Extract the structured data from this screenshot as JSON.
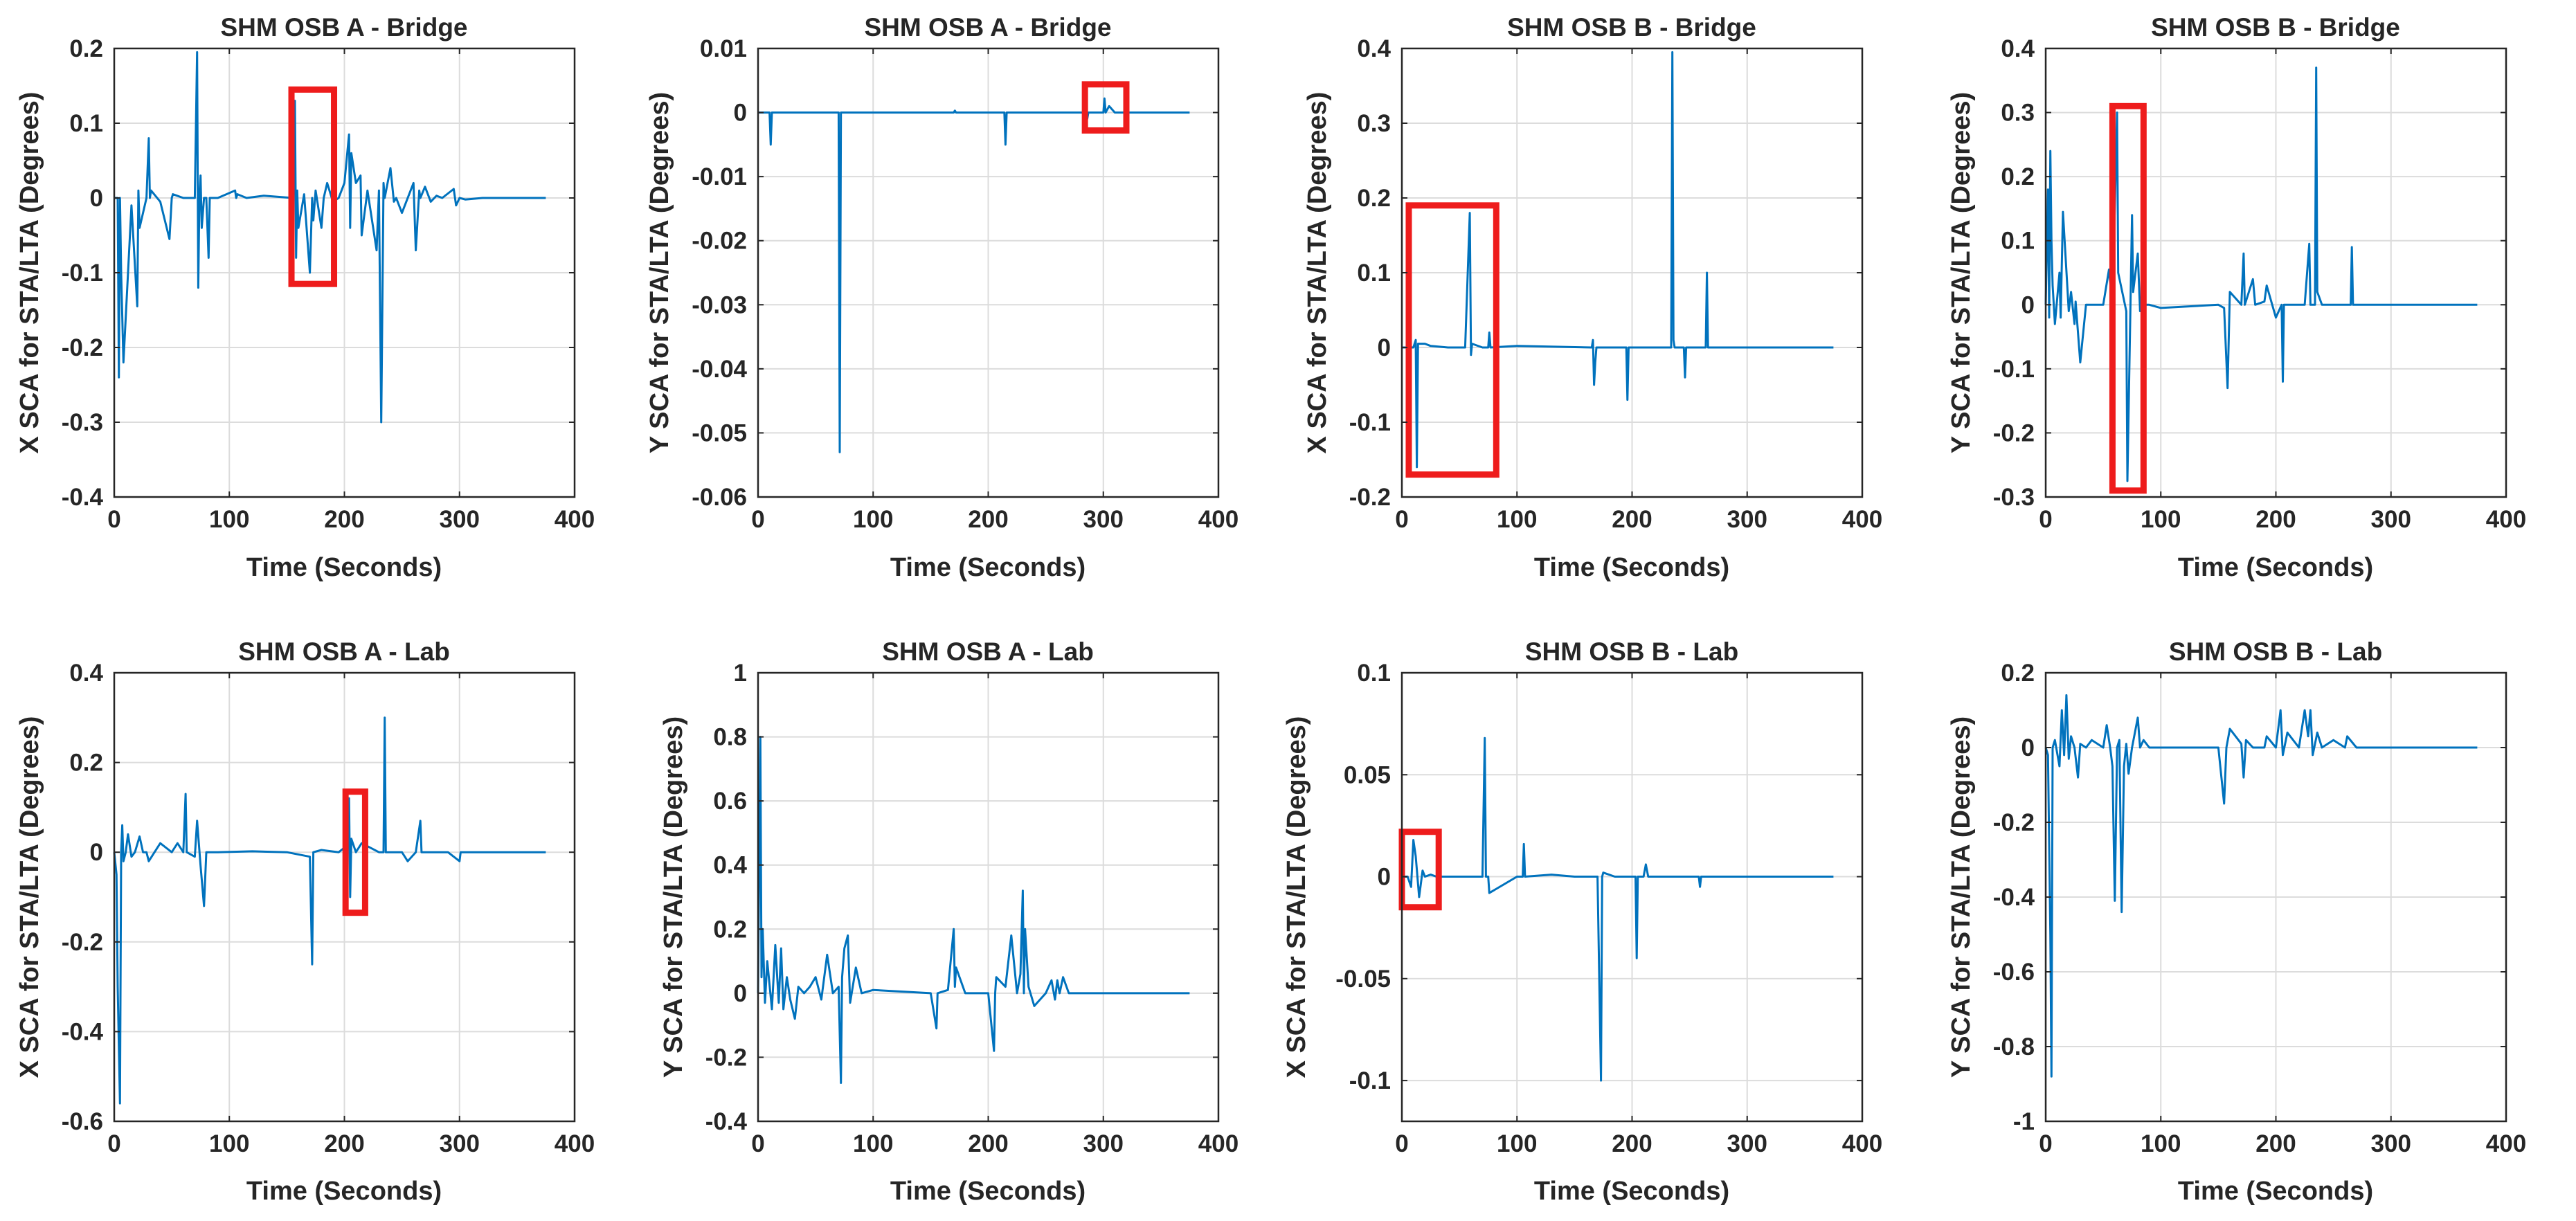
{
  "figure": {
    "series_color": "#0072BD",
    "highlight_color": "#ee1c1c",
    "grid_color": "#dcdcdc"
  },
  "chart_data": [
    {
      "id": "p1",
      "type": "line",
      "title": "SHM OSB A - Bridge",
      "xlabel": "Time (Seconds)",
      "ylabel": "X SCA for STA/LTA (Degrees)",
      "xlim": [
        0,
        400
      ],
      "ylim": [
        -0.4,
        0.2
      ],
      "xticks": [
        0,
        100,
        200,
        300,
        400
      ],
      "xticklabels": [
        "0",
        "100",
        "200",
        "300",
        "400"
      ],
      "yticks": [
        -0.4,
        -0.3,
        -0.2,
        -0.1,
        0,
        0.1,
        0.2
      ],
      "yticklabels": [
        "-0.4",
        "-0.3",
        "-0.2",
        "-0.1",
        "0",
        "0.1",
        "0.2"
      ],
      "grid": true,
      "x": [
        0,
        3,
        4,
        5,
        6,
        8,
        15,
        20,
        21,
        22,
        28,
        30,
        31,
        32,
        40,
        48,
        50,
        51,
        60,
        70,
        72,
        73,
        74,
        75,
        76,
        78,
        80,
        82,
        83,
        90,
        105,
        106,
        107,
        115,
        130,
        155,
        157,
        158,
        159,
        160,
        165,
        170,
        172,
        173,
        175,
        180,
        182,
        185,
        190,
        195,
        200,
        204,
        205,
        206,
        210,
        214,
        215,
        220,
        228,
        230,
        232,
        234,
        235,
        240,
        243,
        245,
        250,
        260,
        262,
        265,
        266,
        270,
        275,
        280,
        285,
        295,
        297,
        300,
        305,
        320,
        375
      ],
      "y": [
        0,
        0,
        -0.24,
        0,
        -0.1,
        -0.22,
        -0.01,
        -0.145,
        0.01,
        -0.04,
        0,
        0.08,
        0,
        0.01,
        -0.005,
        -0.055,
        0,
        0.005,
        0,
        0,
        0.195,
        -0.12,
        0,
        0.03,
        -0.04,
        0,
        0,
        -0.08,
        0,
        0,
        0.01,
        0,
        0.005,
        0,
        0.003,
        0,
        0.13,
        -0.08,
        0.01,
        -0.04,
        0.005,
        -0.1,
        0,
        -0.03,
        0.01,
        -0.04,
        0,
        0.02,
        -0.005,
        0,
        0.02,
        0.085,
        -0.04,
        0.06,
        0.02,
        0.03,
        -0.05,
        0.01,
        -0.07,
        0.01,
        -0.3,
        0.02,
        0,
        0.04,
        -0.005,
        0,
        -0.02,
        0.02,
        -0.07,
        0.01,
        0,
        0.015,
        -0.005,
        0.003,
        0,
        0.012,
        -0.01,
        0,
        -0.002,
        0,
        0
      ],
      "highlights": [
        {
          "x": [
            154,
            191
          ],
          "y": [
            -0.115,
            0.145
          ]
        }
      ]
    },
    {
      "id": "p2",
      "type": "line",
      "title": "SHM OSB A - Bridge",
      "xlabel": "Time (Seconds)",
      "ylabel": "Y SCA for STA/LTA (Degrees)",
      "xlim": [
        0,
        400
      ],
      "ylim": [
        -0.06,
        0.01
      ],
      "xticks": [
        0,
        100,
        200,
        300,
        400
      ],
      "xticklabels": [
        "0",
        "100",
        "200",
        "300",
        "400"
      ],
      "yticks": [
        -0.06,
        -0.05,
        -0.04,
        -0.03,
        -0.02,
        -0.01,
        0,
        0.01
      ],
      "yticklabels": [
        "-0.06",
        "-0.05",
        "-0.04",
        "-0.03",
        "-0.02",
        "-0.01",
        "0",
        "0.01"
      ],
      "grid": true,
      "x": [
        0,
        10,
        11,
        12,
        70,
        71,
        72,
        73,
        150,
        170,
        171,
        172,
        214,
        215,
        216,
        285,
        286,
        287,
        300,
        301,
        302,
        305,
        310,
        375
      ],
      "y": [
        0,
        0,
        -0.005,
        0,
        0,
        -0.053,
        0,
        0,
        0,
        0,
        0.0003,
        0,
        0,
        -0.005,
        0,
        0,
        -0.001,
        0,
        0,
        0.0022,
        0,
        0.001,
        0,
        0
      ],
      "highlights": [
        {
          "x": [
            284,
            320
          ],
          "y": [
            -0.0028,
            0.0044
          ]
        }
      ]
    },
    {
      "id": "p3",
      "type": "line",
      "title": "SHM OSB B - Bridge",
      "xlabel": "Time (Seconds)",
      "ylabel": "X SCA for STA/LTA (Degrees)",
      "xlim": [
        0,
        400
      ],
      "ylim": [
        -0.2,
        0.4
      ],
      "xticks": [
        0,
        100,
        200,
        300,
        400
      ],
      "xticklabels": [
        "0",
        "100",
        "200",
        "300",
        "400"
      ],
      "yticks": [
        -0.2,
        -0.1,
        0,
        0.1,
        0.2,
        0.3,
        0.4
      ],
      "yticklabels": [
        "-0.2",
        "-0.1",
        "0",
        "0.1",
        "0.2",
        "0.3",
        "0.4"
      ],
      "grid": true,
      "x": [
        0,
        10,
        12,
        13,
        14,
        20,
        25,
        40,
        55,
        59,
        60,
        61,
        70,
        75,
        76,
        77,
        100,
        165,
        166,
        167,
        168,
        169,
        175,
        195,
        196,
        197,
        205,
        210,
        234,
        235,
        236,
        237,
        240,
        245,
        246,
        247,
        250,
        264,
        265,
        266,
        280,
        375
      ],
      "y": [
        0,
        0,
        0.01,
        -0.16,
        0.005,
        0.005,
        0.002,
        0,
        0,
        0.18,
        -0.01,
        0.005,
        0,
        0,
        0.02,
        0,
        0.002,
        0,
        0.01,
        -0.05,
        -0.02,
        0,
        0,
        0,
        -0.07,
        0,
        0,
        0,
        0,
        0.395,
        0.01,
        0,
        0,
        0,
        -0.04,
        0,
        0,
        0,
        0.1,
        0,
        0,
        0
      ],
      "highlights": [
        {
          "x": [
            6,
            82
          ],
          "y": [
            -0.17,
            0.19
          ]
        }
      ]
    },
    {
      "id": "p4",
      "type": "line",
      "title": "SHM OSB B - Bridge",
      "xlabel": "Time (Seconds)",
      "ylabel": "Y SCA for STA/LTA (Degrees)",
      "xlim": [
        0,
        400
      ],
      "ylim": [
        -0.3,
        0.4
      ],
      "xticks": [
        0,
        100,
        200,
        300,
        400
      ],
      "xticklabels": [
        "0",
        "100",
        "200",
        "300",
        "400"
      ],
      "yticks": [
        -0.3,
        -0.2,
        -0.1,
        0,
        0.1,
        0.2,
        0.3,
        0.4
      ],
      "yticklabels": [
        "-0.3",
        "-0.2",
        "-0.1",
        "0",
        "0.1",
        "0.2",
        "0.3",
        "0.4"
      ],
      "grid": true,
      "x": [
        0,
        2,
        3,
        4,
        5,
        6,
        8,
        12,
        13,
        15,
        20,
        22,
        25,
        26,
        30,
        35,
        40,
        50,
        55,
        58,
        62,
        63,
        70,
        71,
        75,
        76,
        80,
        82,
        85,
        90,
        100,
        150,
        155,
        158,
        160,
        170,
        172,
        173,
        180,
        182,
        190,
        192,
        200,
        205,
        206,
        207,
        210,
        225,
        229,
        230,
        234,
        235,
        236,
        240,
        265,
        266,
        267,
        270,
        300,
        375
      ],
      "y": [
        0,
        0.18,
        -0.02,
        0.24,
        0.1,
        0.03,
        -0.03,
        0.05,
        -0.02,
        0.145,
        -0.01,
        0.02,
        -0.03,
        0.005,
        -0.09,
        0,
        0,
        0,
        0.055,
        0,
        0.3,
        0.05,
        -0.01,
        -0.275,
        0.14,
        0.02,
        0.08,
        -0.01,
        0,
        0,
        -0.005,
        0,
        -0.005,
        -0.13,
        0.02,
        0,
        0.08,
        0,
        0.04,
        0,
        0.005,
        0.03,
        -0.02,
        0,
        -0.12,
        0,
        0,
        0,
        0.095,
        0,
        0,
        0.37,
        0.02,
        0,
        0,
        0.09,
        0,
        0,
        0,
        0
      ],
      "highlights": [
        {
          "x": [
            58,
            85
          ],
          "y": [
            -0.29,
            0.31
          ]
        }
      ]
    },
    {
      "id": "p5",
      "type": "line",
      "title": "SHM OSB A - Lab",
      "xlabel": "Time (Seconds)",
      "ylabel": "X SCA for STA/LTA (Degrees)",
      "xlim": [
        0,
        400
      ],
      "ylim": [
        -0.6,
        0.4
      ],
      "xticks": [
        0,
        100,
        200,
        300,
        400
      ],
      "xticklabels": [
        "0",
        "100",
        "200",
        "300",
        "400"
      ],
      "yticks": [
        -0.6,
        -0.4,
        -0.2,
        0,
        0.2,
        0.4
      ],
      "yticklabels": [
        "-0.6",
        "-0.4",
        "-0.2",
        "0",
        "0.2",
        "0.4"
      ],
      "grid": true,
      "x": [
        0,
        2,
        3,
        5,
        6,
        7,
        8,
        10,
        12,
        15,
        18,
        22,
        25,
        28,
        30,
        40,
        50,
        55,
        60,
        62,
        63,
        70,
        72,
        75,
        78,
        80,
        90,
        120,
        150,
        170,
        172,
        173,
        180,
        195,
        200,
        204,
        205,
        206,
        210,
        215,
        230,
        234,
        235,
        236,
        240,
        250,
        255,
        262,
        266,
        267,
        270,
        290,
        300,
        301,
        302,
        375
      ],
      "y": [
        0,
        -0.05,
        -0.3,
        -0.56,
        0,
        0.06,
        -0.02,
        0,
        0.04,
        -0.01,
        0,
        0.035,
        0,
        0,
        -0.02,
        0.02,
        0,
        0.02,
        0,
        0.13,
        0,
        -0.01,
        0.07,
        -0.03,
        -0.12,
        0,
        0,
        0.002,
        0,
        -0.01,
        -0.25,
        0,
        0.005,
        0,
        0.01,
        0.12,
        -0.1,
        0.03,
        0,
        0.02,
        0,
        0,
        0.3,
        0,
        0,
        0,
        -0.02,
        0,
        0.07,
        0,
        0,
        0,
        -0.02,
        0,
        0,
        0
      ],
      "highlights": [
        {
          "x": [
            201,
            218
          ],
          "y": [
            -0.135,
            0.135
          ]
        }
      ]
    },
    {
      "id": "p6",
      "type": "line",
      "title": "SHM OSB A - Lab",
      "xlabel": "Time (Seconds)",
      "ylabel": "Y SCA for STA/LTA (Degrees)",
      "xlim": [
        0,
        400
      ],
      "ylim": [
        -0.4,
        1
      ],
      "xticks": [
        0,
        100,
        200,
        300,
        400
      ],
      "xticklabels": [
        "0",
        "100",
        "200",
        "300",
        "400"
      ],
      "yticks": [
        -0.4,
        -0.2,
        0,
        0.2,
        0.4,
        0.6,
        0.8,
        1
      ],
      "yticklabels": [
        "-0.4",
        "-0.2",
        "0",
        "0.2",
        "0.4",
        "0.6",
        "0.8",
        "1"
      ],
      "grid": true,
      "x": [
        0,
        2,
        3,
        4,
        6,
        8,
        12,
        15,
        18,
        20,
        22,
        25,
        28,
        32,
        35,
        40,
        45,
        50,
        55,
        60,
        65,
        70,
        72,
        73,
        75,
        78,
        80,
        85,
        90,
        100,
        150,
        155,
        156,
        165,
        170,
        171,
        172,
        180,
        200,
        205,
        206,
        207,
        215,
        220,
        225,
        228,
        230,
        231,
        232,
        235,
        240,
        250,
        255,
        258,
        260,
        262,
        265,
        270,
        300,
        375
      ],
      "y": [
        0,
        0.8,
        0.05,
        0.2,
        -0.03,
        0.1,
        -0.05,
        0.15,
        -0.03,
        0.14,
        -0.05,
        0.05,
        -0.02,
        -0.08,
        0.02,
        0,
        0.02,
        0.05,
        -0.02,
        0.12,
        0,
        0.02,
        -0.28,
        0.05,
        0.14,
        0.18,
        -0.03,
        0.08,
        0,
        0.01,
        0,
        -0.11,
        0,
        0.01,
        0.2,
        0.02,
        0.08,
        0,
        0,
        -0.18,
        0,
        0.05,
        0.02,
        0.18,
        0,
        0.06,
        0.32,
        0,
        0.2,
        0.02,
        -0.04,
        0,
        0.04,
        -0.02,
        0.04,
        0,
        0.05,
        0,
        0,
        0
      ],
      "highlights": []
    },
    {
      "id": "p7",
      "type": "line",
      "title": "SHM OSB B - Lab",
      "xlabel": "Time (Seconds)",
      "ylabel": "X SCA for STA/LTA (Degrees)",
      "xlim": [
        0,
        400
      ],
      "ylim": [
        -0.12,
        0.1
      ],
      "xticks": [
        0,
        100,
        200,
        300,
        400
      ],
      "xticklabels": [
        "0",
        "100",
        "200",
        "300",
        "400"
      ],
      "yticks": [
        -0.1,
        -0.05,
        0,
        0.05,
        0.1
      ],
      "yticklabels": [
        "-0.1",
        "-0.05",
        "0",
        "0.05",
        "0.1"
      ],
      "grid": true,
      "x": [
        0,
        5,
        8,
        10,
        12,
        15,
        18,
        20,
        25,
        30,
        70,
        72,
        73,
        75,
        76,
        100,
        105,
        106,
        107,
        130,
        150,
        170,
        173,
        174,
        175,
        185,
        203,
        204,
        205,
        210,
        212,
        214,
        258,
        259,
        260,
        300,
        375
      ],
      "y": [
        0,
        0,
        -0.005,
        0.018,
        0.01,
        -0.01,
        0.003,
        0,
        0.001,
        0,
        0,
        0.068,
        0,
        0,
        -0.008,
        0,
        0,
        0.016,
        0,
        0.001,
        0,
        0,
        -0.1,
        0,
        0.002,
        0,
        0,
        -0.04,
        0,
        0,
        0.006,
        0,
        0,
        -0.005,
        0,
        0,
        0
      ],
      "highlights": [
        {
          "x": [
            0,
            32
          ],
          "y": [
            -0.015,
            0.022
          ]
        }
      ]
    },
    {
      "id": "p8",
      "type": "line",
      "title": "SHM OSB B - Lab",
      "xlabel": "Time (Seconds)",
      "ylabel": "Y SCA for STA/LTA (Degrees)",
      "xlim": [
        0,
        400
      ],
      "ylim": [
        -1,
        0.2
      ],
      "xticks": [
        0,
        100,
        200,
        300,
        400
      ],
      "xticklabels": [
        "0",
        "100",
        "200",
        "300",
        "400"
      ],
      "yticks": [
        -1,
        -0.8,
        -0.6,
        -0.4,
        -0.2,
        0,
        0.2
      ],
      "yticklabels": [
        "-1",
        "-0.8",
        "-0.6",
        "-0.4",
        "-0.2",
        "0",
        "0.2"
      ],
      "grid": true,
      "x": [
        0,
        2,
        4,
        5,
        6,
        8,
        12,
        14,
        16,
        18,
        20,
        22,
        25,
        28,
        30,
        35,
        40,
        45,
        50,
        53,
        56,
        58,
        60,
        62,
        64,
        66,
        68,
        70,
        72,
        75,
        80,
        82,
        85,
        90,
        100,
        150,
        155,
        157,
        160,
        170,
        172,
        174,
        180,
        190,
        192,
        200,
        204,
        206,
        210,
        220,
        225,
        228,
        230,
        232,
        236,
        240,
        250,
        260,
        262,
        270,
        300,
        375
      ],
      "y": [
        0,
        -0.02,
        -0.5,
        -0.88,
        0,
        0.02,
        -0.05,
        0.1,
        -0.02,
        0.14,
        -0.03,
        0.03,
        0,
        -0.08,
        0.01,
        0,
        0.02,
        0.01,
        0,
        0.06,
        0,
        -0.05,
        -0.41,
        0,
        0.02,
        -0.44,
        -0.05,
        0.01,
        -0.07,
        0,
        0.08,
        0,
        0.02,
        0,
        0,
        0,
        -0.15,
        0,
        0.05,
        0.01,
        -0.08,
        0.02,
        0,
        0,
        0.03,
        0,
        0.1,
        -0.02,
        0.04,
        0,
        0.1,
        0.03,
        0.1,
        -0.02,
        0.04,
        0,
        0.02,
        0,
        0.03,
        0,
        0,
        0
      ],
      "highlights": []
    }
  ]
}
